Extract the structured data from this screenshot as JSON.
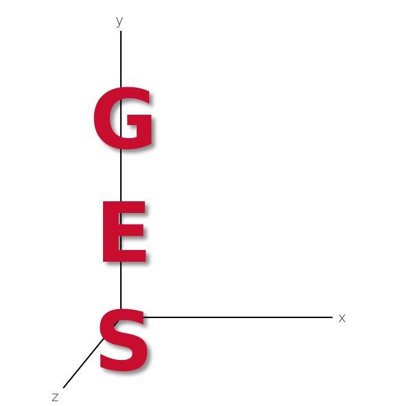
{
  "axes": {
    "y_label": "y",
    "x_label": "x",
    "z_label": "z"
  },
  "logo": {
    "letters": [
      "G",
      "E",
      "S"
    ],
    "color": "#c8102e",
    "shadow_color": "#9a9a9a"
  }
}
